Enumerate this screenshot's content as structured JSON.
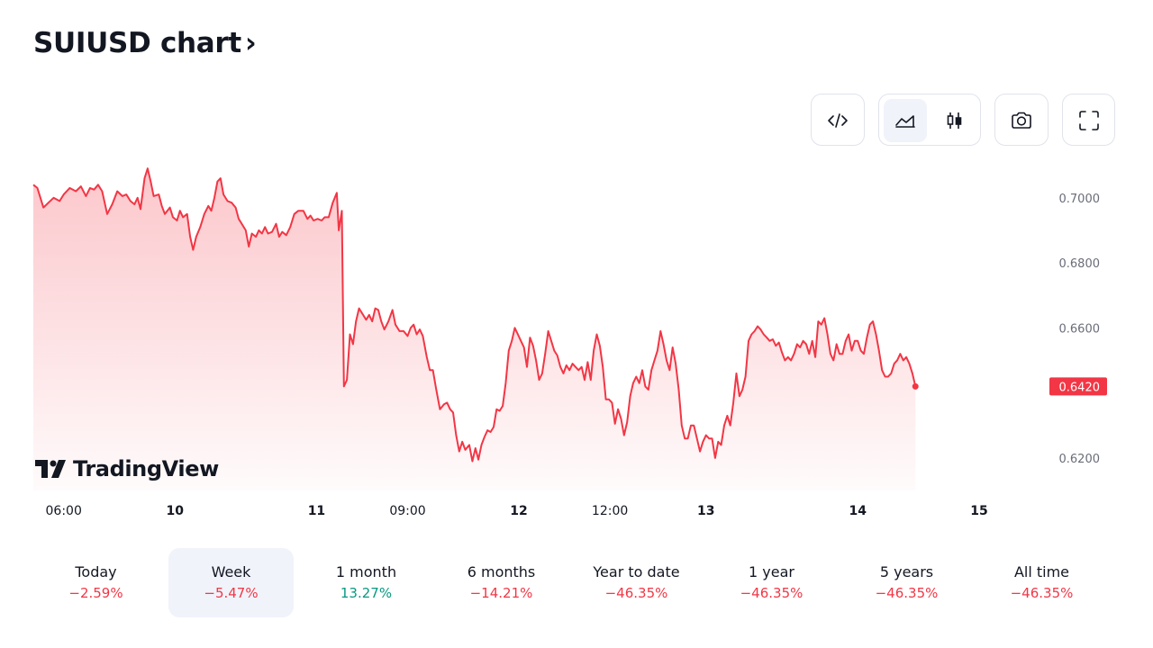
{
  "title": "SUIUSD chart",
  "title_chevron": "›",
  "toolbar": {
    "embed_icon": "code-icon",
    "line_icon": "area-chart-icon",
    "candle_icon": "candlestick-icon",
    "screenshot_icon": "camera-icon",
    "fullscreen_icon": "fullscreen-icon",
    "active_style": "line"
  },
  "logo_text": "TradingView",
  "colors": {
    "line": "#f23645",
    "negative": "#f23645",
    "positive": "#089981",
    "active_bg": "#f0f3fa"
  },
  "chart_data": {
    "type": "area",
    "symbol": "SUIUSD",
    "y_ticks": [
      "0.7000",
      "0.6800",
      "0.6600",
      "0.6200"
    ],
    "ylim": [
      0.61,
      0.711
    ],
    "last_price_label": "0.6420",
    "last_price": 0.642,
    "x_ticks": [
      {
        "label": "06:00",
        "bold": false,
        "x": 0.03
      },
      {
        "label": "10",
        "bold": true,
        "x": 0.14
      },
      {
        "label": "11",
        "bold": true,
        "x": 0.28
      },
      {
        "label": "09:00",
        "bold": false,
        "x": 0.37
      },
      {
        "label": "12",
        "bold": true,
        "x": 0.48
      },
      {
        "label": "12:00",
        "bold": false,
        "x": 0.57
      },
      {
        "label": "13",
        "bold": true,
        "x": 0.665
      },
      {
        "label": "14",
        "bold": true,
        "x": 0.815
      },
      {
        "label": "15",
        "bold": true,
        "x": 0.935
      }
    ],
    "points": [
      [
        0.0,
        0.704
      ],
      [
        0.004,
        0.703
      ],
      [
        0.01,
        0.697
      ],
      [
        0.015,
        0.6985
      ],
      [
        0.02,
        0.7
      ],
      [
        0.026,
        0.699
      ],
      [
        0.03,
        0.701
      ],
      [
        0.036,
        0.703
      ],
      [
        0.042,
        0.702
      ],
      [
        0.047,
        0.7035
      ],
      [
        0.052,
        0.7005
      ],
      [
        0.056,
        0.703
      ],
      [
        0.06,
        0.7025
      ],
      [
        0.064,
        0.704
      ],
      [
        0.068,
        0.702
      ],
      [
        0.073,
        0.695
      ],
      [
        0.078,
        0.698
      ],
      [
        0.083,
        0.702
      ],
      [
        0.088,
        0.7005
      ],
      [
        0.092,
        0.701
      ],
      [
        0.096,
        0.699
      ],
      [
        0.1,
        0.698
      ],
      [
        0.103,
        0.7
      ],
      [
        0.106,
        0.6965
      ],
      [
        0.11,
        0.706
      ],
      [
        0.113,
        0.709
      ],
      [
        0.116,
        0.705
      ],
      [
        0.119,
        0.7005
      ],
      [
        0.124,
        0.701
      ],
      [
        0.127,
        0.6975
      ],
      [
        0.13,
        0.695
      ],
      [
        0.135,
        0.697
      ],
      [
        0.138,
        0.694
      ],
      [
        0.142,
        0.693
      ],
      [
        0.145,
        0.696
      ],
      [
        0.148,
        0.694
      ],
      [
        0.152,
        0.695
      ],
      [
        0.155,
        0.688
      ],
      [
        0.158,
        0.684
      ],
      [
        0.161,
        0.688
      ],
      [
        0.165,
        0.691
      ],
      [
        0.169,
        0.695
      ],
      [
        0.173,
        0.6975
      ],
      [
        0.176,
        0.696
      ],
      [
        0.179,
        0.7
      ],
      [
        0.182,
        0.705
      ],
      [
        0.185,
        0.706
      ],
      [
        0.188,
        0.701
      ],
      [
        0.192,
        0.699
      ],
      [
        0.196,
        0.6985
      ],
      [
        0.2,
        0.697
      ],
      [
        0.203,
        0.6935
      ],
      [
        0.207,
        0.6915
      ],
      [
        0.21,
        0.69
      ],
      [
        0.213,
        0.685
      ],
      [
        0.216,
        0.689
      ],
      [
        0.22,
        0.688
      ],
      [
        0.223,
        0.69
      ],
      [
        0.226,
        0.689
      ],
      [
        0.229,
        0.691
      ],
      [
        0.232,
        0.689
      ],
      [
        0.236,
        0.6895
      ],
      [
        0.24,
        0.692
      ],
      [
        0.243,
        0.688
      ],
      [
        0.246,
        0.6895
      ],
      [
        0.25,
        0.6885
      ],
      [
        0.254,
        0.691
      ],
      [
        0.258,
        0.695
      ],
      [
        0.262,
        0.696
      ],
      [
        0.267,
        0.696
      ],
      [
        0.271,
        0.6935
      ],
      [
        0.274,
        0.6945
      ],
      [
        0.277,
        0.693
      ],
      [
        0.281,
        0.6935
      ],
      [
        0.285,
        0.693
      ],
      [
        0.288,
        0.694
      ],
      [
        0.292,
        0.694
      ],
      [
        0.296,
        0.6985
      ],
      [
        0.3,
        0.7015
      ],
      [
        0.302,
        0.69
      ],
      [
        0.305,
        0.696
      ],
      [
        0.307,
        0.642
      ],
      [
        0.31,
        0.644
      ],
      [
        0.313,
        0.658
      ],
      [
        0.316,
        0.655
      ],
      [
        0.319,
        0.662
      ],
      [
        0.322,
        0.666
      ],
      [
        0.326,
        0.664
      ],
      [
        0.329,
        0.6625
      ],
      [
        0.332,
        0.664
      ],
      [
        0.335,
        0.662
      ],
      [
        0.338,
        0.666
      ],
      [
        0.341,
        0.6655
      ],
      [
        0.344,
        0.662
      ],
      [
        0.347,
        0.6595
      ],
      [
        0.351,
        0.662
      ],
      [
        0.355,
        0.6655
      ],
      [
        0.358,
        0.661
      ],
      [
        0.362,
        0.659
      ],
      [
        0.366,
        0.659
      ],
      [
        0.37,
        0.6575
      ],
      [
        0.373,
        0.66
      ],
      [
        0.376,
        0.661
      ],
      [
        0.379,
        0.658
      ],
      [
        0.382,
        0.6595
      ],
      [
        0.385,
        0.6575
      ],
      [
        0.389,
        0.651
      ],
      [
        0.392,
        0.647
      ],
      [
        0.395,
        0.647
      ],
      [
        0.398,
        0.6415
      ],
      [
        0.402,
        0.635
      ],
      [
        0.406,
        0.6365
      ],
      [
        0.409,
        0.637
      ],
      [
        0.412,
        0.635
      ],
      [
        0.415,
        0.634
      ],
      [
        0.418,
        0.627
      ],
      [
        0.421,
        0.622
      ],
      [
        0.424,
        0.625
      ],
      [
        0.427,
        0.6225
      ],
      [
        0.431,
        0.624
      ],
      [
        0.434,
        0.619
      ],
      [
        0.437,
        0.623
      ],
      [
        0.44,
        0.6195
      ],
      [
        0.443,
        0.624
      ],
      [
        0.446,
        0.6265
      ],
      [
        0.449,
        0.6285
      ],
      [
        0.452,
        0.628
      ],
      [
        0.455,
        0.6295
      ],
      [
        0.458,
        0.635
      ],
      [
        0.461,
        0.6345
      ],
      [
        0.464,
        0.636
      ],
      [
        0.467,
        0.643
      ],
      [
        0.47,
        0.653
      ],
      [
        0.473,
        0.656
      ],
      [
        0.476,
        0.66
      ],
      [
        0.479,
        0.658
      ],
      [
        0.482,
        0.656
      ],
      [
        0.485,
        0.654
      ],
      [
        0.488,
        0.648
      ],
      [
        0.491,
        0.657
      ],
      [
        0.494,
        0.6545
      ],
      [
        0.497,
        0.65
      ],
      [
        0.5,
        0.644
      ],
      [
        0.503,
        0.646
      ],
      [
        0.506,
        0.652
      ],
      [
        0.509,
        0.659
      ],
      [
        0.512,
        0.656
      ],
      [
        0.515,
        0.653
      ],
      [
        0.518,
        0.6515
      ],
      [
        0.521,
        0.648
      ],
      [
        0.524,
        0.646
      ],
      [
        0.527,
        0.6485
      ],
      [
        0.53,
        0.647
      ],
      [
        0.533,
        0.649
      ],
      [
        0.536,
        0.648
      ],
      [
        0.539,
        0.647
      ],
      [
        0.542,
        0.648
      ],
      [
        0.545,
        0.644
      ],
      [
        0.548,
        0.6495
      ],
      [
        0.551,
        0.644
      ],
      [
        0.554,
        0.653
      ],
      [
        0.557,
        0.658
      ],
      [
        0.56,
        0.6545
      ],
      [
        0.563,
        0.648
      ],
      [
        0.566,
        0.638
      ],
      [
        0.569,
        0.638
      ],
      [
        0.572,
        0.637
      ],
      [
        0.575,
        0.6305
      ],
      [
        0.578,
        0.635
      ],
      [
        0.581,
        0.632
      ],
      [
        0.584,
        0.627
      ],
      [
        0.587,
        0.631
      ],
      [
        0.59,
        0.639
      ],
      [
        0.593,
        0.643
      ],
      [
        0.596,
        0.645
      ],
      [
        0.599,
        0.643
      ],
      [
        0.602,
        0.647
      ],
      [
        0.605,
        0.642
      ],
      [
        0.608,
        0.641
      ],
      [
        0.611,
        0.647
      ],
      [
        0.614,
        0.65
      ],
      [
        0.617,
        0.653
      ],
      [
        0.62,
        0.659
      ],
      [
        0.623,
        0.655
      ],
      [
        0.626,
        0.65
      ],
      [
        0.629,
        0.647
      ],
      [
        0.632,
        0.654
      ],
      [
        0.635,
        0.649
      ],
      [
        0.638,
        0.641
      ],
      [
        0.641,
        0.63
      ],
      [
        0.644,
        0.626
      ],
      [
        0.647,
        0.626
      ],
      [
        0.65,
        0.63
      ],
      [
        0.653,
        0.63
      ],
      [
        0.656,
        0.626
      ],
      [
        0.659,
        0.622
      ],
      [
        0.662,
        0.625
      ],
      [
        0.665,
        0.627
      ],
      [
        0.668,
        0.626
      ],
      [
        0.671,
        0.626
      ],
      [
        0.674,
        0.62
      ],
      [
        0.677,
        0.625
      ],
      [
        0.68,
        0.624
      ],
      [
        0.683,
        0.63
      ],
      [
        0.686,
        0.633
      ],
      [
        0.689,
        0.63
      ],
      [
        0.692,
        0.637
      ],
      [
        0.695,
        0.646
      ],
      [
        0.698,
        0.639
      ],
      [
        0.701,
        0.641
      ],
      [
        0.704,
        0.645
      ],
      [
        0.707,
        0.656
      ],
      [
        0.71,
        0.658
      ],
      [
        0.713,
        0.659
      ],
      [
        0.716,
        0.6605
      ],
      [
        0.719,
        0.6595
      ],
      [
        0.722,
        0.658
      ],
      [
        0.725,
        0.657
      ],
      [
        0.728,
        0.656
      ],
      [
        0.731,
        0.6565
      ],
      [
        0.734,
        0.6545
      ],
      [
        0.737,
        0.6555
      ],
      [
        0.74,
        0.6525
      ],
      [
        0.743,
        0.65
      ],
      [
        0.746,
        0.651
      ],
      [
        0.749,
        0.65
      ],
      [
        0.752,
        0.652
      ],
      [
        0.755,
        0.655
      ],
      [
        0.758,
        0.654
      ],
      [
        0.761,
        0.656
      ],
      [
        0.764,
        0.655
      ],
      [
        0.767,
        0.652
      ],
      [
        0.77,
        0.656
      ],
      [
        0.773,
        0.651
      ],
      [
        0.776,
        0.662
      ],
      [
        0.779,
        0.661
      ],
      [
        0.782,
        0.663
      ],
      [
        0.785,
        0.658
      ],
      [
        0.788,
        0.652
      ],
      [
        0.791,
        0.65
      ],
      [
        0.794,
        0.655
      ],
      [
        0.797,
        0.652
      ],
      [
        0.8,
        0.652
      ],
      [
        0.803,
        0.656
      ],
      [
        0.806,
        0.658
      ],
      [
        0.809,
        0.653
      ],
      [
        0.812,
        0.656
      ],
      [
        0.815,
        0.656
      ],
      [
        0.818,
        0.653
      ],
      [
        0.821,
        0.652
      ],
      [
        0.824,
        0.657
      ],
      [
        0.827,
        0.661
      ],
      [
        0.83,
        0.662
      ],
      [
        0.833,
        0.658
      ],
      [
        0.836,
        0.653
      ],
      [
        0.839,
        0.647
      ],
      [
        0.842,
        0.645
      ],
      [
        0.845,
        0.645
      ],
      [
        0.848,
        0.646
      ],
      [
        0.851,
        0.649
      ],
      [
        0.854,
        0.65
      ],
      [
        0.857,
        0.652
      ],
      [
        0.86,
        0.65
      ],
      [
        0.863,
        0.651
      ],
      [
        0.866,
        0.649
      ],
      [
        0.869,
        0.646
      ],
      [
        0.872,
        0.642
      ]
    ],
    "grid": false,
    "series_color": "#f23645"
  },
  "periods": [
    {
      "label": "Today",
      "value": "−2.59%",
      "positive": false,
      "active": false
    },
    {
      "label": "Week",
      "value": "−5.47%",
      "positive": false,
      "active": true
    },
    {
      "label": "1 month",
      "value": "13.27%",
      "positive": true,
      "active": false
    },
    {
      "label": "6 months",
      "value": "−14.21%",
      "positive": false,
      "active": false
    },
    {
      "label": "Year to date",
      "value": "−46.35%",
      "positive": false,
      "active": false
    },
    {
      "label": "1 year",
      "value": "−46.35%",
      "positive": false,
      "active": false
    },
    {
      "label": "5 years",
      "value": "−46.35%",
      "positive": false,
      "active": false
    },
    {
      "label": "All time",
      "value": "−46.35%",
      "positive": false,
      "active": false
    }
  ]
}
